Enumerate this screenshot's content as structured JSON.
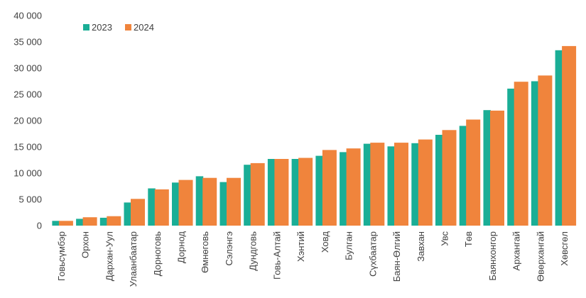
{
  "chart_data": {
    "type": "bar",
    "title": "",
    "xlabel": "",
    "ylabel": "",
    "ylim": [
      0,
      40000
    ],
    "y_ticks": [
      "0",
      "5 000",
      "10 000",
      "15 000",
      "20 000",
      "25 000",
      "30 000",
      "35 000",
      "40 000"
    ],
    "grid": false,
    "legend_position": "top-left",
    "categories": [
      "Говьсүмбэр",
      "Орхон",
      "Дархан-Уул",
      "Улаанбаатар",
      "Дорноговь",
      "Дорнод",
      "Өмнөговь",
      "Сэлэнгэ",
      "Дундговь",
      "Говь-Алтай",
      "Хэнтий",
      "Ховд",
      "Булган",
      "Сүхбаатар",
      "Баян-Өлгий",
      "Завхан",
      "Увс",
      "Төв",
      "Баянхонгор",
      "Архангай",
      "Өвөрхангай",
      "Хөвсгөл"
    ],
    "series": [
      {
        "name": "2023",
        "color": "#1aae96",
        "values": [
          900,
          1300,
          1500,
          4400,
          7100,
          8200,
          9400,
          8300,
          11600,
          12700,
          12700,
          13300,
          14000,
          15600,
          15100,
          15700,
          17300,
          19000,
          22000,
          26100,
          27500,
          33400
        ]
      },
      {
        "name": "2024",
        "color": "#f0843c",
        "values": [
          900,
          1600,
          1800,
          5100,
          6900,
          8700,
          9100,
          9100,
          11900,
          12700,
          12900,
          14400,
          14700,
          15800,
          15800,
          16400,
          18200,
          20200,
          21900,
          27400,
          28600,
          34200
        ]
      }
    ]
  }
}
